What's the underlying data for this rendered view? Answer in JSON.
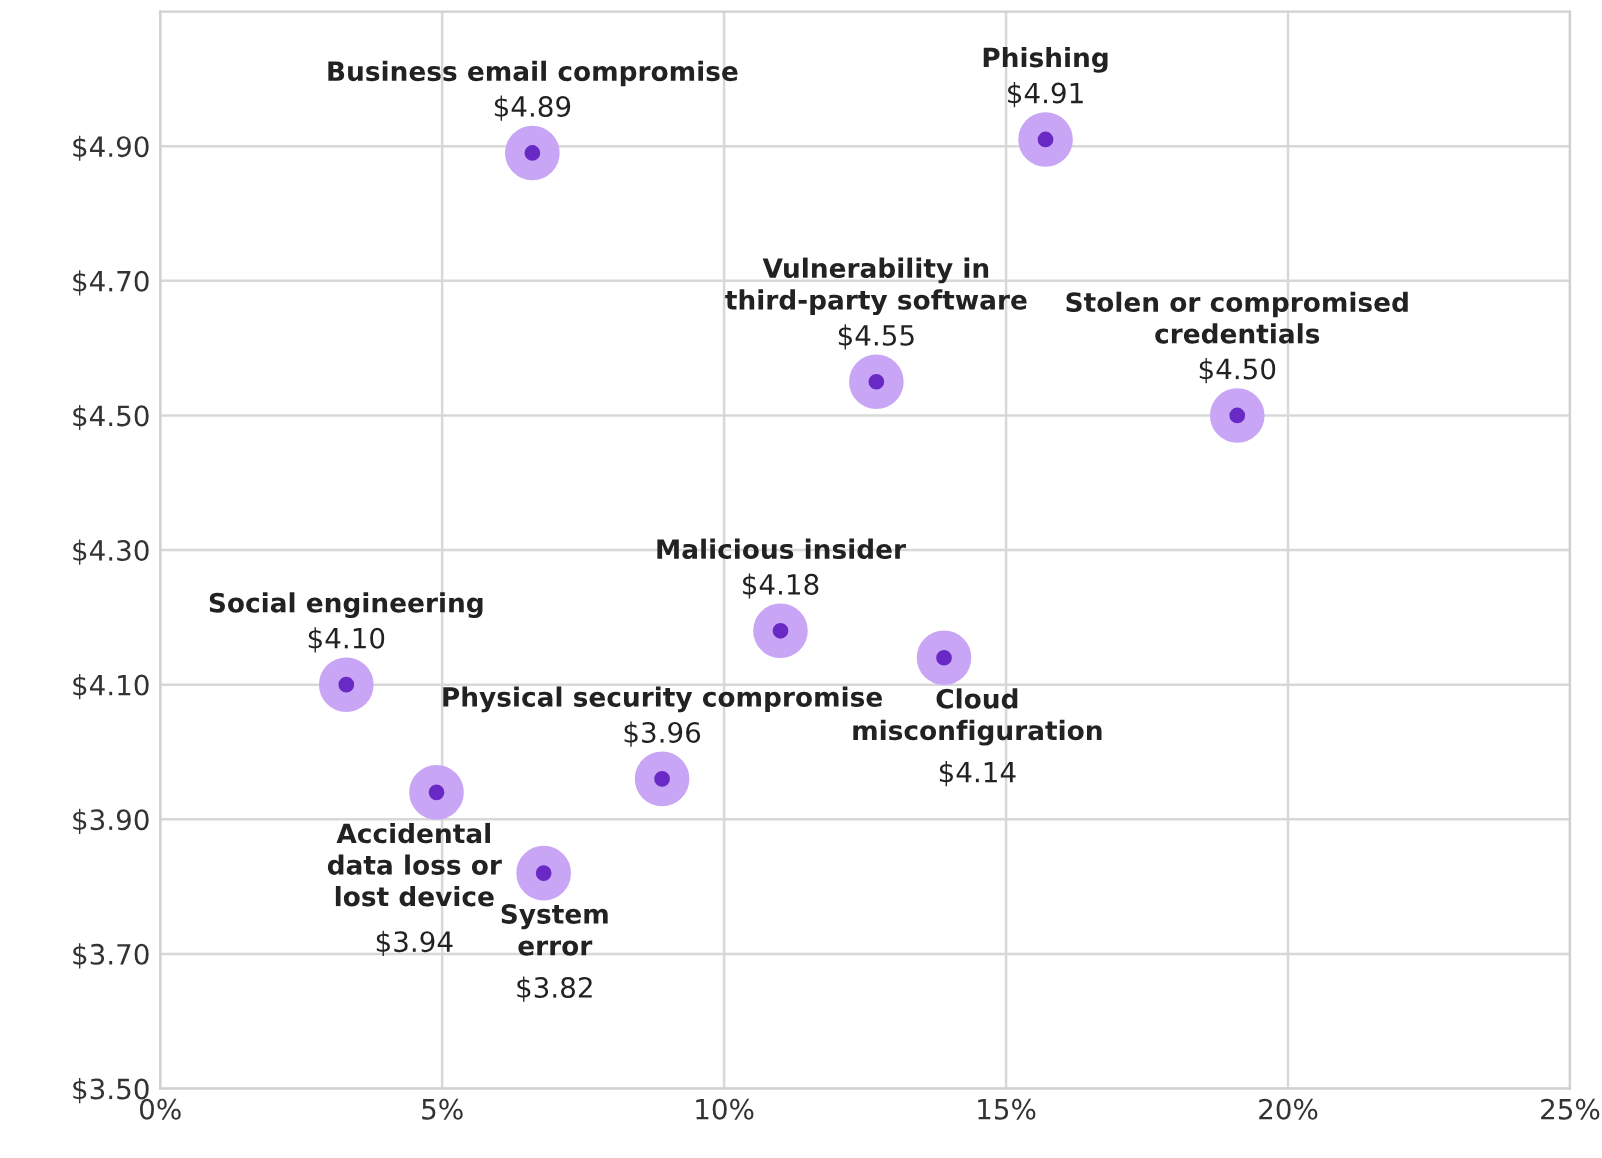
{
  "chart_data": {
    "type": "scatter",
    "x": [
      6.6,
      15.7,
      12.7,
      19.1,
      11.0,
      3.3,
      13.9,
      4.9,
      6.8,
      8.9
    ],
    "series": [
      {
        "color": "#6929c4",
        "values": [
          4.89,
          4.91,
          4.55,
          4.5,
          4.18,
          4.1,
          4.14,
          3.94,
          3.82,
          3.96
        ]
      }
    ],
    "value_labels": [
      "$4.89",
      "$4.91",
      "$4.55",
      "$4.50",
      "$4.18",
      "$4.10",
      "$4.14",
      "$3.94",
      "$3.82",
      "$3.96"
    ],
    "annotations": [
      {
        "text": "Business email compromise",
        "x": 6.6,
        "y": 4.89
      },
      {
        "text": "Phishing",
        "x": 15.7,
        "y": 4.91
      },
      {
        "text": "Vulnerability in\nthird-party software",
        "x": 12.7,
        "y": 4.55
      },
      {
        "text": "Stolen or compromised\ncredentials",
        "x": 19.1,
        "y": 4.5
      },
      {
        "text": "Malicious insider",
        "x": 11.0,
        "y": 4.18
      },
      {
        "text": "Social engineering",
        "x": 3.3,
        "y": 4.1
      },
      {
        "text": "Cloud\nmisconfiguration",
        "x": 13.9,
        "y": 4.14
      },
      {
        "text": "Accidental\ndata loss or\nlost device",
        "x": 4.9,
        "y": 3.94
      },
      {
        "text": "System\nerror",
        "x": 6.8,
        "y": 3.82
      },
      {
        "text": "Physical security compromise",
        "x": 8.9,
        "y": 3.96
      }
    ],
    "xlim": [
      0,
      25
    ],
    "ylim": [
      3.5,
      5.1
    ],
    "xticks": [
      {
        "value": 0,
        "label": "0%"
      },
      {
        "value": 5,
        "label": "5%"
      },
      {
        "value": 10,
        "label": "10%"
      },
      {
        "value": 15,
        "label": "15%"
      },
      {
        "value": 20,
        "label": "20%"
      },
      {
        "value": 25,
        "label": "25%"
      }
    ],
    "yticks": [
      {
        "value": 3.5,
        "label": "$3.50"
      },
      {
        "value": 3.7,
        "label": "$3.70"
      },
      {
        "value": 3.9,
        "label": "$3.90"
      },
      {
        "value": 4.1,
        "label": "$4.10"
      },
      {
        "value": 4.3,
        "label": "$4.30"
      },
      {
        "value": 4.5,
        "label": "$4.50"
      },
      {
        "value": 4.7,
        "label": "$4.70"
      },
      {
        "value": 4.9,
        "label": "$4.90"
      }
    ],
    "grid": true,
    "marker": "circle"
  }
}
